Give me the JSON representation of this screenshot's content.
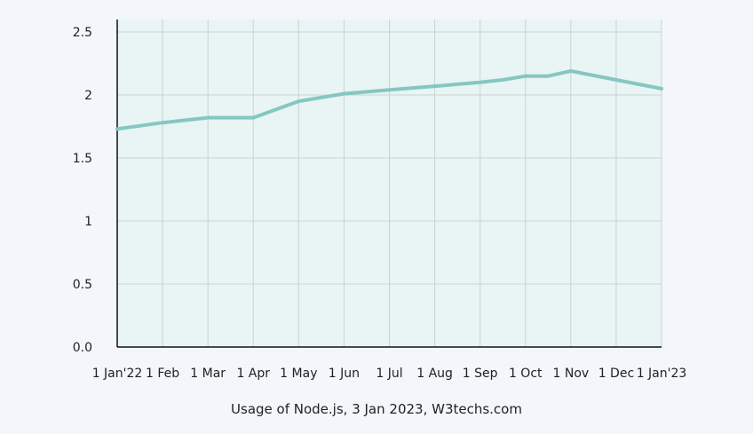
{
  "chart_data": {
    "type": "line",
    "title": "",
    "caption": "Usage of Node.js, 3 Jan 2023, W3techs.com",
    "xlabel": "",
    "ylabel": "",
    "x_ticks": [
      "1 Jan'22",
      "1 Feb",
      "1 Mar",
      "1 Apr",
      "1 May",
      "1 Jun",
      "1 Jul",
      "1 Aug",
      "1 Sep",
      "1 Oct",
      "1 Nov",
      "1 Dec",
      "1 Jan'23"
    ],
    "y_ticks": [
      "0.0",
      "0.5",
      "1",
      "1.5",
      "2",
      "2.5"
    ],
    "y_tick_values": [
      0,
      0.5,
      1,
      1.5,
      2,
      2.5
    ],
    "ylim": [
      0,
      2.5
    ],
    "grid": true,
    "series": [
      {
        "x": [
          "1 Jan'22",
          "1 Feb",
          "1 Mar",
          "1 Apr",
          "1 May",
          "1 Jun",
          "1 Jul",
          "1 Aug",
          "1 Sep",
          "15 Sep",
          "1 Oct",
          "15 Oct",
          "1 Nov",
          "1 Dec",
          "1 Jan'23"
        ],
        "x_pos": [
          0,
          1,
          2,
          3,
          4,
          5,
          6,
          7,
          8,
          8.5,
          9,
          9.5,
          10,
          11,
          12
        ],
        "values": [
          1.73,
          1.78,
          1.82,
          1.82,
          1.95,
          2.01,
          2.04,
          2.07,
          2.1,
          2.12,
          2.15,
          2.15,
          2.19,
          2.12,
          2.05
        ]
      }
    ],
    "colors": {
      "line": "#86c6c3",
      "plot_bg": "#e9f4f4",
      "grid": "#c9d3d3",
      "axis": "#111111"
    }
  }
}
